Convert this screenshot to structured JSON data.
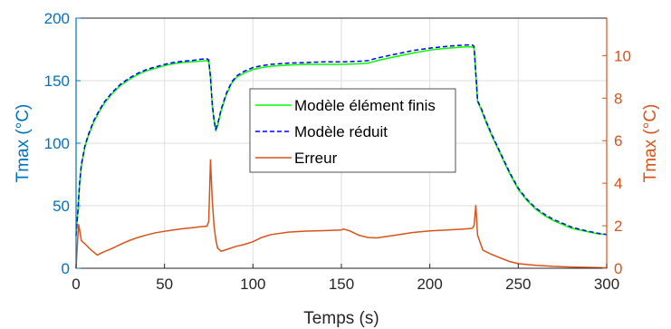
{
  "chart_data": {
    "type": "line",
    "xlabel": "Temps (s)",
    "ylabel_left": "Tmax (°C)",
    "ylabel_right": "Tmax (°C)",
    "xlim": [
      0,
      300
    ],
    "ylim_left": [
      0,
      200
    ],
    "ylim_right": [
      0,
      11.765
    ],
    "x_ticks": [
      0,
      50,
      100,
      150,
      200,
      250,
      300
    ],
    "y_left_ticks": [
      0,
      50,
      100,
      150,
      200
    ],
    "y_right_ticks": [
      0,
      2,
      4,
      6,
      8,
      10
    ],
    "grid": true,
    "legend_position": "center",
    "colors": {
      "left_axis": "#0072BD",
      "right_axis": "#D95319",
      "fem": "#00FF00",
      "reduced": "#0000FF",
      "error": "#D95319",
      "grid": "#dedede"
    },
    "series": [
      {
        "name": "Modèle élément finis",
        "axis": "left",
        "style": "solid",
        "x": [
          0,
          1,
          2,
          3,
          5,
          7,
          10,
          13,
          16,
          20,
          25,
          30,
          35,
          40,
          45,
          50,
          55,
          60,
          65,
          70,
          74,
          75,
          76,
          77,
          78,
          79,
          80,
          82,
          85,
          88,
          91,
          95,
          100,
          105,
          110,
          120,
          130,
          140,
          150,
          160,
          165,
          170,
          180,
          190,
          200,
          210,
          220,
          224,
          225,
          226,
          227,
          229,
          232,
          235,
          240,
          245,
          250,
          255,
          260,
          265,
          270,
          275,
          280,
          285,
          290,
          295,
          300
        ],
        "y": [
          26,
          45,
          68,
          82,
          97,
          106,
          117,
          125,
          132,
          139,
          146,
          151,
          155,
          158,
          160,
          162,
          163.5,
          164.5,
          165,
          165.5,
          166,
          165,
          152,
          130,
          118,
          110,
          114,
          126,
          139,
          148,
          153,
          156,
          159,
          160.5,
          161.5,
          162.5,
          163,
          163,
          163,
          163.5,
          164,
          166,
          169,
          172,
          174.5,
          176,
          177,
          177,
          176,
          155,
          133,
          127,
          116,
          106,
          91,
          76,
          63,
          54,
          47,
          42,
          38,
          35,
          32,
          30.5,
          29,
          27.5,
          27
        ]
      },
      {
        "name": "Modèle réduit",
        "axis": "left",
        "style": "dashed",
        "x": [
          0,
          1,
          2,
          3,
          5,
          7,
          10,
          13,
          16,
          20,
          25,
          30,
          35,
          40,
          45,
          50,
          55,
          60,
          65,
          70,
          74,
          75,
          76,
          77,
          78,
          79,
          80,
          82,
          85,
          88,
          91,
          95,
          100,
          105,
          110,
          120,
          130,
          140,
          150,
          160,
          165,
          170,
          180,
          190,
          200,
          210,
          220,
          224,
          225,
          226,
          227,
          229,
          232,
          235,
          240,
          245,
          250,
          255,
          260,
          265,
          270,
          275,
          280,
          285,
          290,
          295,
          300
        ],
        "y": [
          26,
          45,
          68,
          83,
          98,
          107,
          118,
          126,
          133,
          140,
          147,
          152,
          156,
          159,
          161,
          163,
          164.5,
          165.5,
          166,
          167,
          167.5,
          166.5,
          153,
          131,
          119,
          111,
          115,
          127,
          140,
          149,
          154,
          157.5,
          160.5,
          162,
          163,
          164,
          164.5,
          165,
          165,
          165.5,
          166,
          168,
          171,
          174,
          176,
          177.5,
          178.5,
          178.5,
          177.5,
          156,
          134,
          128,
          117,
          107,
          92,
          77,
          64,
          55,
          48,
          43,
          39,
          36,
          33,
          31,
          29.5,
          28,
          27
        ]
      },
      {
        "name": "Erreur",
        "axis": "right",
        "style": "solid",
        "x": [
          0,
          1,
          1.5,
          2,
          3,
          5,
          8,
          12,
          15,
          20,
          25,
          30,
          35,
          40,
          45,
          50,
          55,
          60,
          65,
          70,
          74,
          75,
          76,
          77,
          78,
          79,
          80,
          82,
          85,
          90,
          95,
          100,
          105,
          110,
          120,
          130,
          140,
          150,
          151,
          155,
          160,
          165,
          170,
          180,
          190,
          200,
          210,
          220,
          224,
          225,
          226,
          227,
          230,
          235,
          240,
          245,
          250,
          260,
          270,
          280,
          290,
          300
        ],
        "y": [
          0,
          1.5,
          2.05,
          1.8,
          1.3,
          1.15,
          0.9,
          0.62,
          0.75,
          0.92,
          1.12,
          1.3,
          1.45,
          1.57,
          1.67,
          1.74,
          1.8,
          1.86,
          1.9,
          1.95,
          1.98,
          2.2,
          5.1,
          3.2,
          2.0,
          1.35,
          0.95,
          0.8,
          0.88,
          1.02,
          1.12,
          1.25,
          1.45,
          1.58,
          1.7,
          1.75,
          1.77,
          1.8,
          1.85,
          1.75,
          1.55,
          1.45,
          1.43,
          1.55,
          1.68,
          1.76,
          1.8,
          1.85,
          1.88,
          2.0,
          2.95,
          1.55,
          0.85,
          0.65,
          0.48,
          0.32,
          0.22,
          0.14,
          0.09,
          0.06,
          0.04,
          0.02
        ]
      }
    ]
  }
}
